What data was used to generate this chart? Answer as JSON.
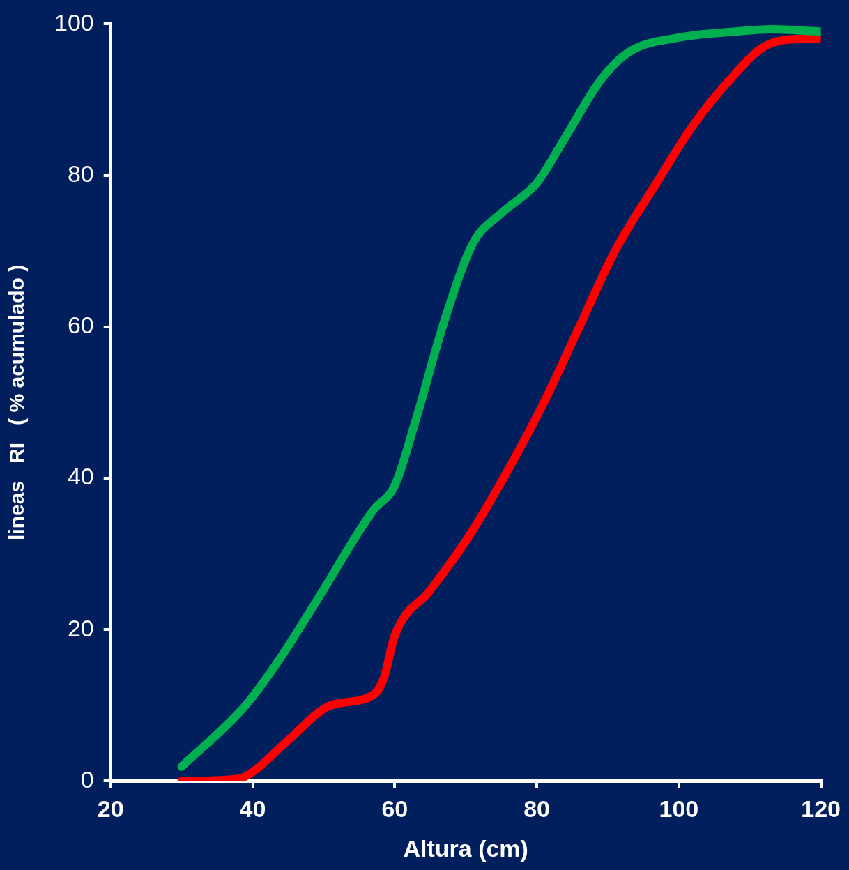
{
  "chart_data": {
    "type": "line",
    "xlabel": "Altura (cm)",
    "ylabel": "lineas   RI   ( % acumulado )",
    "xlim": [
      20,
      120
    ],
    "xticks": [
      20,
      40,
      60,
      80,
      100,
      120
    ],
    "ylim": [
      0,
      100
    ],
    "yticks": [
      0,
      20,
      40,
      60,
      80,
      100
    ],
    "grid": false,
    "legend": false,
    "marker": "none",
    "line_style": "solid",
    "series": [
      {
        "color": "#00b050",
        "x": [
          30,
          39,
          44,
          49,
          57,
          60,
          63,
          67,
          71,
          75,
          80,
          84,
          89,
          93,
          100,
          108,
          113,
          120
        ],
        "values": [
          1.9,
          10,
          16.4,
          23.8,
          35.8,
          39,
          47.8,
          60.8,
          71,
          75,
          79,
          85,
          92.6,
          96.3,
          98.2,
          99,
          99.3,
          99
        ]
      },
      {
        "color": "#ff0000",
        "x": [
          30,
          38,
          40,
          45,
          51,
          57,
          58.5,
          60,
          65,
          70,
          75,
          81,
          86,
          91,
          97,
          102,
          108,
          112,
          117,
          120
        ],
        "values": [
          0,
          0.3,
          1.2,
          5.4,
          10,
          11.4,
          13.7,
          19.2,
          25.2,
          31.7,
          39.5,
          50,
          60,
          70,
          79.2,
          86.6,
          93.5,
          97,
          98,
          98
        ]
      }
    ]
  }
}
